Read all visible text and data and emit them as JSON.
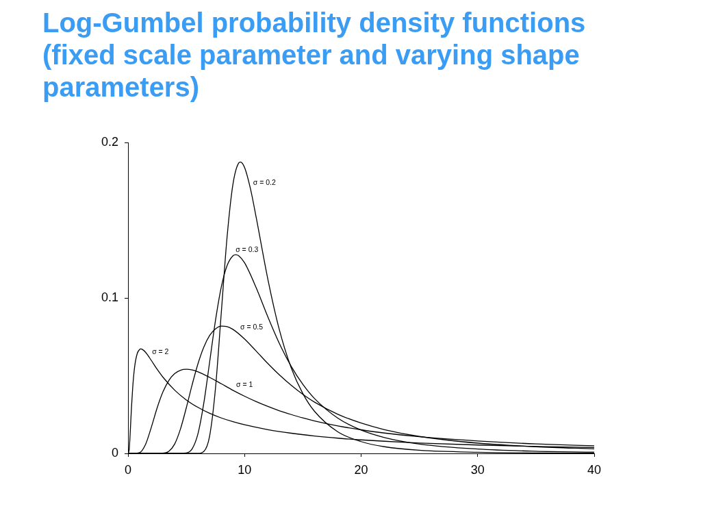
{
  "chart_data": {
    "type": "line",
    "title": "Log-Gumbel probability density functions (fixed scale parameter and varying shape parameters)",
    "xlim": [
      0,
      40
    ],
    "xticks": [
      0,
      10,
      20,
      30,
      40
    ],
    "ylim": [
      0,
      0.2
    ],
    "yticks": [
      0,
      0.1,
      0.2
    ],
    "marker": "none",
    "line_style": "solid",
    "series": [
      {
        "color": "#000000",
        "x": [
          0,
          5,
          6,
          6.5,
          7,
          7.5,
          8,
          8.5,
          9,
          9.5,
          9.65,
          10,
          10.5,
          11,
          12,
          13,
          14,
          15,
          16,
          18,
          20,
          22,
          25,
          30,
          35,
          40
        ],
        "values": [
          0,
          0,
          0,
          0.0012,
          0.0111,
          0.0415,
          0.0902,
          0.1392,
          0.173,
          0.1868,
          0.1874,
          0.1839,
          0.1704,
          0.1517,
          0.112,
          0.0791,
          0.0551,
          0.0385,
          0.0271,
          0.0139,
          0.0076,
          0.0043,
          0.002,
          0.0007,
          0.0003,
          0.0001
        ]
      },
      {
        "color": "#000000",
        "x": [
          0,
          4,
          5,
          5.5,
          6,
          6.5,
          7,
          7.5,
          8,
          8.5,
          9,
          9.25,
          9.5,
          10,
          11,
          12,
          13,
          14,
          15,
          16,
          18,
          20,
          22,
          25,
          30,
          35,
          40
        ],
        "values": [
          0,
          0,
          0.0003,
          0.0029,
          0.0126,
          0.0322,
          0.0586,
          0.0853,
          0.1069,
          0.1208,
          0.1271,
          0.1278,
          0.1271,
          0.1226,
          0.1065,
          0.0878,
          0.0705,
          0.056,
          0.0444,
          0.0353,
          0.0227,
          0.015,
          0.0102,
          0.006,
          0.0028,
          0.0014,
          0.0008
        ]
      },
      {
        "color": "#000000",
        "x": [
          0,
          2,
          3,
          3.5,
          4,
          4.5,
          5,
          5.5,
          6,
          6.5,
          7,
          7.5,
          8,
          8.5,
          9,
          10,
          11,
          12,
          13,
          14,
          15,
          16,
          18,
          20,
          22,
          25,
          30,
          35,
          40
        ],
        "values": [
          0,
          0,
          0.0001,
          0.0013,
          0.006,
          0.0157,
          0.0293,
          0.0441,
          0.0576,
          0.0683,
          0.0758,
          0.0801,
          0.0819,
          0.0816,
          0.0798,
          0.0736,
          0.0658,
          0.0578,
          0.0504,
          0.0438,
          0.038,
          0.033,
          0.0252,
          0.0195,
          0.0153,
          0.0109,
          0.0066,
          0.0043,
          0.0029
        ]
      },
      {
        "color": "#000000",
        "x": [
          0,
          0.5,
          1,
          1.5,
          2,
          2.5,
          3,
          3.5,
          4,
          4.5,
          5,
          5.5,
          6,
          7,
          8,
          9,
          10,
          11,
          12,
          13,
          14,
          15,
          16,
          18,
          20,
          22,
          25,
          30,
          35,
          40
        ],
        "values": [
          0,
          0,
          0.0005,
          0.0057,
          0.0168,
          0.0293,
          0.0396,
          0.0469,
          0.0513,
          0.0535,
          0.0541,
          0.0537,
          0.0525,
          0.0489,
          0.0448,
          0.0406,
          0.0368,
          0.0333,
          0.0302,
          0.0274,
          0.025,
          0.0228,
          0.0209,
          0.0177,
          0.0152,
          0.0131,
          0.0107,
          0.008,
          0.0061,
          0.0049
        ]
      },
      {
        "color": "#000000",
        "x": [
          0,
          0.1,
          0.2,
          0.3,
          0.4,
          0.5,
          0.6,
          0.8,
          1,
          1.1,
          1.2,
          1.5,
          2,
          2.5,
          3,
          4,
          5,
          6,
          7,
          8,
          9,
          10,
          12,
          14,
          16,
          18,
          20,
          25,
          30,
          35,
          40
        ],
        "values": [
          0,
          0.0023,
          0.015,
          0.0299,
          0.0421,
          0.0511,
          0.0574,
          0.0644,
          0.0669,
          0.0672,
          0.067,
          0.0651,
          0.0598,
          0.0541,
          0.049,
          0.0407,
          0.0344,
          0.0296,
          0.0258,
          0.0228,
          0.0204,
          0.0184,
          0.0153,
          0.013,
          0.0112,
          0.0098,
          0.0087,
          0.0067,
          0.0054,
          0.0045,
          0.0038
        ]
      }
    ],
    "annotations": [
      {
        "text": "σ = 0.2",
        "x": 10.5,
        "y": 0.1704
      },
      {
        "text": "σ = 0.3",
        "x": 9.0,
        "y": 0.1271
      },
      {
        "text": "σ = 0.5",
        "x": 9.4,
        "y": 0.0777
      },
      {
        "text": "σ = 1",
        "x": 9.05,
        "y": 0.0404
      },
      {
        "text": "σ = 2",
        "x": 1.83,
        "y": 0.0617
      }
    ]
  }
}
